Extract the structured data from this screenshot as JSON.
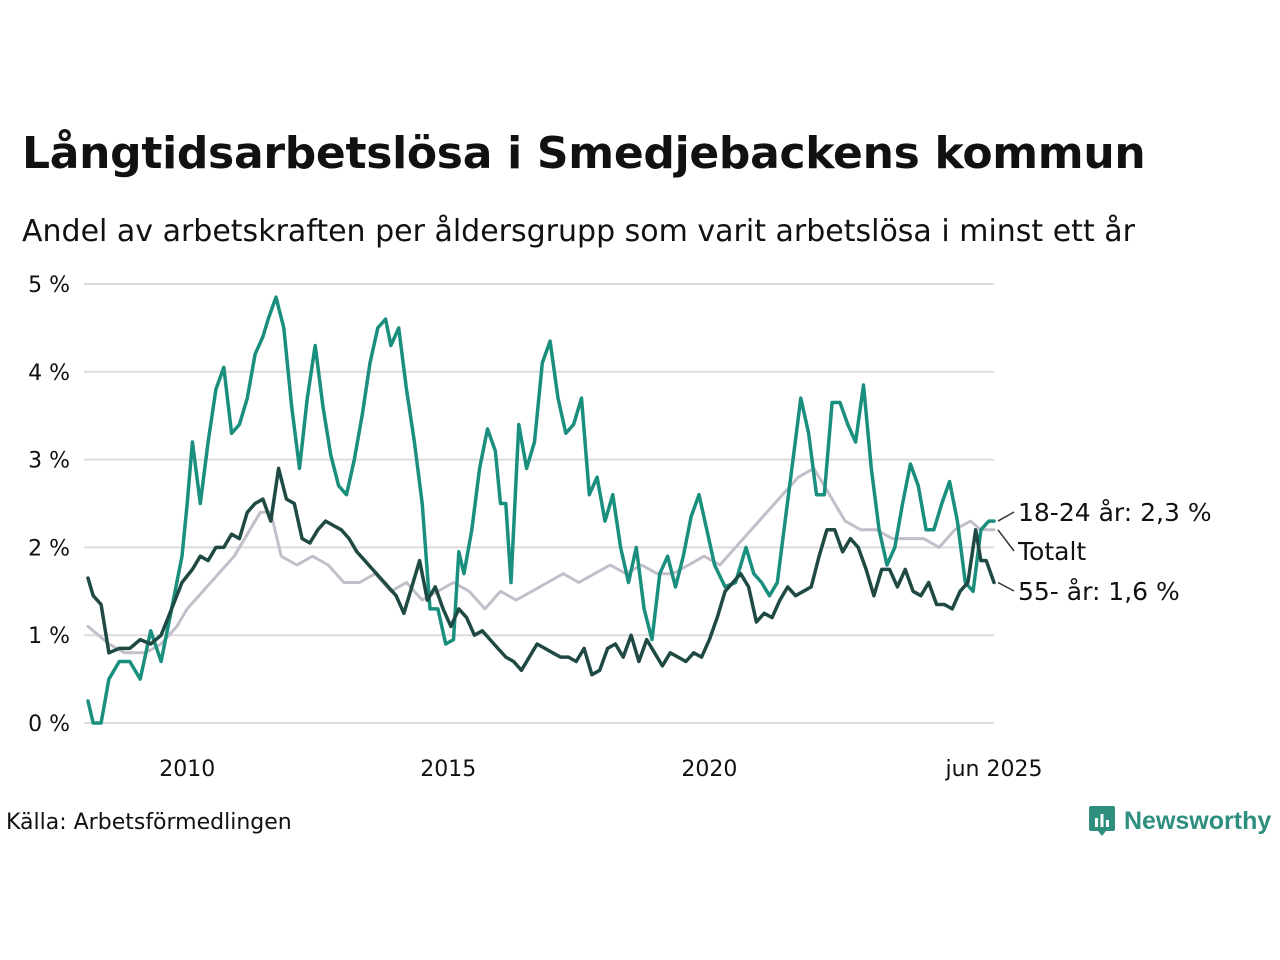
{
  "title": "Långtidsarbetslösa i Smedjebackens kommun",
  "subtitle": "Andel av arbetskraften per åldersgrupp som varit arbetslösa i minst ett år",
  "source": "Källa: Arbetsförmedlingen",
  "brand": "Newsworthy",
  "colors": {
    "young": "#1a8f7e",
    "old": "#1f4a44",
    "total": "#c3bfca",
    "grid": "#dcdcdc",
    "brand": "#2f8f7f"
  },
  "chart_data": {
    "type": "line",
    "xlabel": "",
    "ylabel": "",
    "ylim": [
      0,
      5
    ],
    "xlim": [
      2008.1,
      2025.45
    ],
    "y_ticks": [
      0,
      1,
      2,
      3,
      4,
      5
    ],
    "y_tick_labels": [
      "0 %",
      "1 %",
      "2 %",
      "3 %",
      "4 %",
      "5 %"
    ],
    "x_ticks": [
      2010,
      2015,
      2020,
      2025.45
    ],
    "x_tick_labels": [
      "2010",
      "2015",
      "2020",
      "jun 2025"
    ],
    "grid": true,
    "legend": "direct labels at right end of lines",
    "series": [
      {
        "key": "total",
        "labels": [
          "Totalt"
        ],
        "points": [
          [
            2008.1,
            1.1
          ],
          [
            2008.5,
            0.9
          ],
          [
            2008.8,
            0.8
          ],
          [
            2009.2,
            0.8
          ],
          [
            2009.5,
            0.9
          ],
          [
            2009.8,
            1.1
          ],
          [
            2010.0,
            1.3
          ],
          [
            2010.3,
            1.5
          ],
          [
            2010.6,
            1.7
          ],
          [
            2010.9,
            1.9
          ],
          [
            2011.2,
            2.2
          ],
          [
            2011.4,
            2.4
          ],
          [
            2011.6,
            2.4
          ],
          [
            2011.8,
            1.9
          ],
          [
            2012.1,
            1.8
          ],
          [
            2012.4,
            1.9
          ],
          [
            2012.7,
            1.8
          ],
          [
            2013.0,
            1.6
          ],
          [
            2013.3,
            1.6
          ],
          [
            2013.6,
            1.7
          ],
          [
            2013.9,
            1.5
          ],
          [
            2014.2,
            1.6
          ],
          [
            2014.5,
            1.4
          ],
          [
            2014.8,
            1.5
          ],
          [
            2015.1,
            1.6
          ],
          [
            2015.4,
            1.5
          ],
          [
            2015.7,
            1.3
          ],
          [
            2016.0,
            1.5
          ],
          [
            2016.3,
            1.4
          ],
          [
            2016.6,
            1.5
          ],
          [
            2016.9,
            1.6
          ],
          [
            2017.2,
            1.7
          ],
          [
            2017.5,
            1.6
          ],
          [
            2017.8,
            1.7
          ],
          [
            2018.1,
            1.8
          ],
          [
            2018.4,
            1.7
          ],
          [
            2018.7,
            1.8
          ],
          [
            2019.0,
            1.7
          ],
          [
            2019.3,
            1.7
          ],
          [
            2019.6,
            1.8
          ],
          [
            2019.9,
            1.9
          ],
          [
            2020.2,
            1.8
          ],
          [
            2020.5,
            2.0
          ],
          [
            2020.8,
            2.2
          ],
          [
            2021.1,
            2.4
          ],
          [
            2021.4,
            2.6
          ],
          [
            2021.7,
            2.8
          ],
          [
            2022.0,
            2.9
          ],
          [
            2022.2,
            2.7
          ],
          [
            2022.4,
            2.5
          ],
          [
            2022.6,
            2.3
          ],
          [
            2022.9,
            2.2
          ],
          [
            2023.2,
            2.2
          ],
          [
            2023.5,
            2.1
          ],
          [
            2023.8,
            2.1
          ],
          [
            2024.1,
            2.1
          ],
          [
            2024.4,
            2.0
          ],
          [
            2024.7,
            2.2
          ],
          [
            2025.0,
            2.3
          ],
          [
            2025.2,
            2.2
          ],
          [
            2025.45,
            2.2
          ]
        ]
      },
      {
        "key": "young",
        "labels": [
          "18-24 år",
          "2,3 %"
        ],
        "points": [
          [
            2008.1,
            0.25
          ],
          [
            2008.2,
            0.0
          ],
          [
            2008.35,
            0.0
          ],
          [
            2008.5,
            0.5
          ],
          [
            2008.7,
            0.7
          ],
          [
            2008.9,
            0.7
          ],
          [
            2009.1,
            0.5
          ],
          [
            2009.3,
            1.05
          ],
          [
            2009.5,
            0.7
          ],
          [
            2009.7,
            1.3
          ],
          [
            2009.9,
            1.9
          ],
          [
            2010.0,
            2.5
          ],
          [
            2010.1,
            3.2
          ],
          [
            2010.25,
            2.5
          ],
          [
            2010.4,
            3.2
          ],
          [
            2010.55,
            3.8
          ],
          [
            2010.7,
            4.05
          ],
          [
            2010.85,
            3.3
          ],
          [
            2011.0,
            3.4
          ],
          [
            2011.15,
            3.7
          ],
          [
            2011.3,
            4.2
          ],
          [
            2011.45,
            4.4
          ],
          [
            2011.55,
            4.6
          ],
          [
            2011.7,
            4.85
          ],
          [
            2011.85,
            4.5
          ],
          [
            2012.0,
            3.6
          ],
          [
            2012.15,
            2.9
          ],
          [
            2012.3,
            3.7
          ],
          [
            2012.45,
            4.3
          ],
          [
            2012.6,
            3.6
          ],
          [
            2012.75,
            3.05
          ],
          [
            2012.9,
            2.7
          ],
          [
            2013.05,
            2.6
          ],
          [
            2013.2,
            3.0
          ],
          [
            2013.35,
            3.5
          ],
          [
            2013.5,
            4.1
          ],
          [
            2013.65,
            4.5
          ],
          [
            2013.8,
            4.6
          ],
          [
            2013.9,
            4.3
          ],
          [
            2014.05,
            4.5
          ],
          [
            2014.2,
            3.8
          ],
          [
            2014.35,
            3.2
          ],
          [
            2014.5,
            2.5
          ],
          [
            2014.65,
            1.3
          ],
          [
            2014.8,
            1.3
          ],
          [
            2014.95,
            0.9
          ],
          [
            2015.1,
            0.95
          ],
          [
            2015.2,
            1.95
          ],
          [
            2015.3,
            1.7
          ],
          [
            2015.45,
            2.2
          ],
          [
            2015.6,
            2.9
          ],
          [
            2015.75,
            3.35
          ],
          [
            2015.9,
            3.1
          ],
          [
            2016.0,
            2.5
          ],
          [
            2016.1,
            2.5
          ],
          [
            2016.2,
            1.6
          ],
          [
            2016.35,
            3.4
          ],
          [
            2016.5,
            2.9
          ],
          [
            2016.65,
            3.2
          ],
          [
            2016.8,
            4.1
          ],
          [
            2016.95,
            4.35
          ],
          [
            2017.1,
            3.7
          ],
          [
            2017.25,
            3.3
          ],
          [
            2017.4,
            3.4
          ],
          [
            2017.55,
            3.7
          ],
          [
            2017.7,
            2.6
          ],
          [
            2017.85,
            2.8
          ],
          [
            2018.0,
            2.3
          ],
          [
            2018.15,
            2.6
          ],
          [
            2018.3,
            2.0
          ],
          [
            2018.45,
            1.6
          ],
          [
            2018.6,
            2.0
          ],
          [
            2018.75,
            1.3
          ],
          [
            2018.9,
            0.95
          ],
          [
            2019.05,
            1.7
          ],
          [
            2019.2,
            1.9
          ],
          [
            2019.35,
            1.55
          ],
          [
            2019.5,
            1.9
          ],
          [
            2019.65,
            2.35
          ],
          [
            2019.8,
            2.6
          ],
          [
            2019.95,
            2.2
          ],
          [
            2020.1,
            1.8
          ],
          [
            2020.3,
            1.55
          ],
          [
            2020.5,
            1.6
          ],
          [
            2020.7,
            2.0
          ],
          [
            2020.85,
            1.7
          ],
          [
            2021.0,
            1.6
          ],
          [
            2021.15,
            1.45
          ],
          [
            2021.3,
            1.6
          ],
          [
            2021.45,
            2.3
          ],
          [
            2021.6,
            3.0
          ],
          [
            2021.75,
            3.7
          ],
          [
            2021.9,
            3.3
          ],
          [
            2022.05,
            2.6
          ],
          [
            2022.2,
            2.6
          ],
          [
            2022.35,
            3.65
          ],
          [
            2022.5,
            3.65
          ],
          [
            2022.65,
            3.4
          ],
          [
            2022.8,
            3.2
          ],
          [
            2022.95,
            3.85
          ],
          [
            2023.1,
            2.9
          ],
          [
            2023.25,
            2.2
          ],
          [
            2023.4,
            1.8
          ],
          [
            2023.55,
            2.0
          ],
          [
            2023.7,
            2.5
          ],
          [
            2023.85,
            2.95
          ],
          [
            2024.0,
            2.7
          ],
          [
            2024.15,
            2.2
          ],
          [
            2024.3,
            2.2
          ],
          [
            2024.45,
            2.5
          ],
          [
            2024.6,
            2.75
          ],
          [
            2024.75,
            2.3
          ],
          [
            2024.9,
            1.6
          ],
          [
            2025.05,
            1.5
          ],
          [
            2025.2,
            2.2
          ],
          [
            2025.35,
            2.3
          ],
          [
            2025.45,
            2.3
          ]
        ]
      },
      {
        "key": "old",
        "labels": [
          "55- år",
          "1,6 %"
        ],
        "points": [
          [
            2008.1,
            1.65
          ],
          [
            2008.2,
            1.45
          ],
          [
            2008.35,
            1.35
          ],
          [
            2008.5,
            0.8
          ],
          [
            2008.7,
            0.85
          ],
          [
            2008.9,
            0.85
          ],
          [
            2009.1,
            0.95
          ],
          [
            2009.3,
            0.9
          ],
          [
            2009.5,
            1.0
          ],
          [
            2009.7,
            1.3
          ],
          [
            2009.9,
            1.6
          ],
          [
            2010.1,
            1.75
          ],
          [
            2010.25,
            1.9
          ],
          [
            2010.4,
            1.85
          ],
          [
            2010.55,
            2.0
          ],
          [
            2010.7,
            2.0
          ],
          [
            2010.85,
            2.15
          ],
          [
            2011.0,
            2.1
          ],
          [
            2011.15,
            2.4
          ],
          [
            2011.3,
            2.5
          ],
          [
            2011.45,
            2.55
          ],
          [
            2011.6,
            2.3
          ],
          [
            2011.75,
            2.9
          ],
          [
            2011.9,
            2.55
          ],
          [
            2012.05,
            2.5
          ],
          [
            2012.2,
            2.1
          ],
          [
            2012.35,
            2.05
          ],
          [
            2012.5,
            2.2
          ],
          [
            2012.65,
            2.3
          ],
          [
            2012.8,
            2.25
          ],
          [
            2012.95,
            2.2
          ],
          [
            2013.1,
            2.1
          ],
          [
            2013.25,
            1.95
          ],
          [
            2013.4,
            1.85
          ],
          [
            2013.55,
            1.75
          ],
          [
            2013.7,
            1.65
          ],
          [
            2013.85,
            1.55
          ],
          [
            2014.0,
            1.45
          ],
          [
            2014.15,
            1.25
          ],
          [
            2014.3,
            1.55
          ],
          [
            2014.45,
            1.85
          ],
          [
            2014.6,
            1.4
          ],
          [
            2014.75,
            1.55
          ],
          [
            2014.9,
            1.3
          ],
          [
            2015.05,
            1.1
          ],
          [
            2015.2,
            1.3
          ],
          [
            2015.35,
            1.2
          ],
          [
            2015.5,
            1.0
          ],
          [
            2015.65,
            1.05
          ],
          [
            2015.8,
            0.95
          ],
          [
            2015.95,
            0.85
          ],
          [
            2016.1,
            0.75
          ],
          [
            2016.25,
            0.7
          ],
          [
            2016.4,
            0.6
          ],
          [
            2016.55,
            0.75
          ],
          [
            2016.7,
            0.9
          ],
          [
            2016.85,
            0.85
          ],
          [
            2017.0,
            0.8
          ],
          [
            2017.15,
            0.75
          ],
          [
            2017.3,
            0.75
          ],
          [
            2017.45,
            0.7
          ],
          [
            2017.6,
            0.85
          ],
          [
            2017.75,
            0.55
          ],
          [
            2017.9,
            0.6
          ],
          [
            2018.05,
            0.85
          ],
          [
            2018.2,
            0.9
          ],
          [
            2018.35,
            0.75
          ],
          [
            2018.5,
            1.0
          ],
          [
            2018.65,
            0.7
          ],
          [
            2018.8,
            0.95
          ],
          [
            2018.95,
            0.8
          ],
          [
            2019.1,
            0.65
          ],
          [
            2019.25,
            0.8
          ],
          [
            2019.4,
            0.75
          ],
          [
            2019.55,
            0.7
          ],
          [
            2019.7,
            0.8
          ],
          [
            2019.85,
            0.75
          ],
          [
            2020.0,
            0.95
          ],
          [
            2020.15,
            1.2
          ],
          [
            2020.3,
            1.5
          ],
          [
            2020.45,
            1.6
          ],
          [
            2020.6,
            1.7
          ],
          [
            2020.75,
            1.55
          ],
          [
            2020.9,
            1.15
          ],
          [
            2021.05,
            1.25
          ],
          [
            2021.2,
            1.2
          ],
          [
            2021.35,
            1.4
          ],
          [
            2021.5,
            1.55
          ],
          [
            2021.65,
            1.45
          ],
          [
            2021.8,
            1.5
          ],
          [
            2021.95,
            1.55
          ],
          [
            2022.1,
            1.9
          ],
          [
            2022.25,
            2.2
          ],
          [
            2022.4,
            2.2
          ],
          [
            2022.55,
            1.95
          ],
          [
            2022.7,
            2.1
          ],
          [
            2022.85,
            2.0
          ],
          [
            2023.0,
            1.75
          ],
          [
            2023.15,
            1.45
          ],
          [
            2023.3,
            1.75
          ],
          [
            2023.45,
            1.75
          ],
          [
            2023.6,
            1.55
          ],
          [
            2023.75,
            1.75
          ],
          [
            2023.9,
            1.5
          ],
          [
            2024.05,
            1.45
          ],
          [
            2024.2,
            1.6
          ],
          [
            2024.35,
            1.35
          ],
          [
            2024.5,
            1.35
          ],
          [
            2024.65,
            1.3
          ],
          [
            2024.8,
            1.5
          ],
          [
            2024.95,
            1.6
          ],
          [
            2025.1,
            2.2
          ],
          [
            2025.2,
            1.85
          ],
          [
            2025.3,
            1.85
          ],
          [
            2025.45,
            1.6
          ]
        ]
      }
    ]
  }
}
